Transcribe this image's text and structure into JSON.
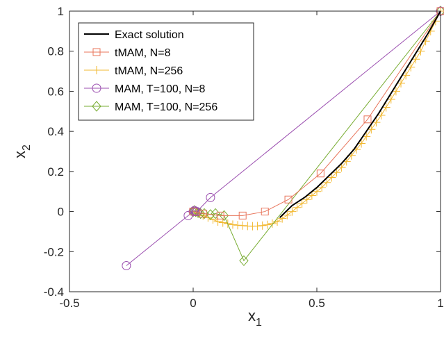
{
  "chart_data": {
    "type": "line",
    "xlabel": "x",
    "xlabel_sub": "1",
    "ylabel": "x",
    "ylabel_sub": "2",
    "xlim": [
      -0.5,
      1
    ],
    "ylim": [
      -0.4,
      1
    ],
    "xticks": [
      -0.5,
      0,
      0.5,
      1
    ],
    "xtick_labels": [
      "-0.5",
      "0",
      "0.5",
      "1"
    ],
    "yticks": [
      -0.4,
      -0.2,
      0,
      0.2,
      0.4,
      0.6,
      0.8,
      1
    ],
    "ytick_labels": [
      "-0.4",
      "-0.2",
      "0",
      "0.2",
      "0.4",
      "0.6",
      "0.8",
      "1"
    ],
    "grid": false,
    "legend_position": "top-left",
    "series": [
      {
        "name": "Exact solution",
        "color": "#000000",
        "marker": "none",
        "x": [
          0.35,
          0.4,
          0.45,
          0.5,
          0.55,
          0.6,
          0.65,
          0.7,
          0.75,
          0.8,
          0.85,
          0.9,
          0.95,
          1.0
        ],
        "y": [
          -0.03,
          0.03,
          0.07,
          0.12,
          0.18,
          0.24,
          0.31,
          0.4,
          0.49,
          0.59,
          0.69,
          0.79,
          0.89,
          1.0
        ]
      },
      {
        "name": "tMAM, N=8",
        "color": "#e8745a",
        "marker": "square",
        "x": [
          0.0,
          0.04,
          0.11,
          0.2,
          0.29,
          0.385,
          0.515,
          0.705,
          1.0
        ],
        "y": [
          0.0,
          -0.01,
          -0.02,
          -0.02,
          0.0,
          0.06,
          0.19,
          0.46,
          1.0
        ]
      },
      {
        "name": "tMAM, N=256",
        "color": "#f2b830",
        "marker": "plus",
        "x": [
          0.0,
          0.02,
          0.04,
          0.06,
          0.08,
          0.1,
          0.12,
          0.14,
          0.16,
          0.18,
          0.2,
          0.22,
          0.24,
          0.26,
          0.28,
          0.3,
          0.32,
          0.34,
          0.36,
          0.38,
          0.4,
          0.42,
          0.44,
          0.46,
          0.48,
          0.5,
          0.52,
          0.54,
          0.56,
          0.58,
          0.6,
          0.62,
          0.64,
          0.66,
          0.68,
          0.7,
          0.72,
          0.74,
          0.76,
          0.78,
          0.8,
          0.82,
          0.84,
          0.86,
          0.88,
          0.9,
          0.92,
          0.94,
          0.96,
          0.98,
          1.0
        ],
        "y": [
          0.0,
          -0.01,
          -0.02,
          -0.03,
          -0.04,
          -0.05,
          -0.055,
          -0.06,
          -0.065,
          -0.068,
          -0.07,
          -0.072,
          -0.073,
          -0.072,
          -0.07,
          -0.066,
          -0.06,
          -0.05,
          -0.035,
          -0.018,
          0.0,
          0.02,
          0.04,
          0.06,
          0.08,
          0.1,
          0.12,
          0.145,
          0.17,
          0.195,
          0.22,
          0.25,
          0.28,
          0.31,
          0.34,
          0.375,
          0.41,
          0.445,
          0.48,
          0.52,
          0.56,
          0.6,
          0.64,
          0.68,
          0.72,
          0.76,
          0.8,
          0.85,
          0.9,
          0.95,
          1.0
        ]
      },
      {
        "name": "MAM, T=100, N=8",
        "color": "#9b4fb0",
        "marker": "circle",
        "x": [
          -0.27,
          -0.02,
          0.0,
          0.005,
          0.01,
          0.015,
          0.07,
          1.0
        ],
        "y": [
          -0.27,
          -0.02,
          0.0,
          0.005,
          0.0,
          0.0,
          0.07,
          1.0
        ]
      },
      {
        "name": "MAM, T=100, N=256",
        "color": "#77ac30",
        "marker": "diamond",
        "x": [
          0.0,
          0.005,
          0.01,
          0.02,
          0.03,
          0.045,
          0.07,
          0.09,
          0.125,
          0.205,
          1.0
        ],
        "y": [
          0.0,
          0.005,
          0.0,
          -0.005,
          -0.01,
          -0.01,
          -0.015,
          -0.01,
          -0.02,
          -0.245,
          1.0
        ]
      }
    ]
  }
}
